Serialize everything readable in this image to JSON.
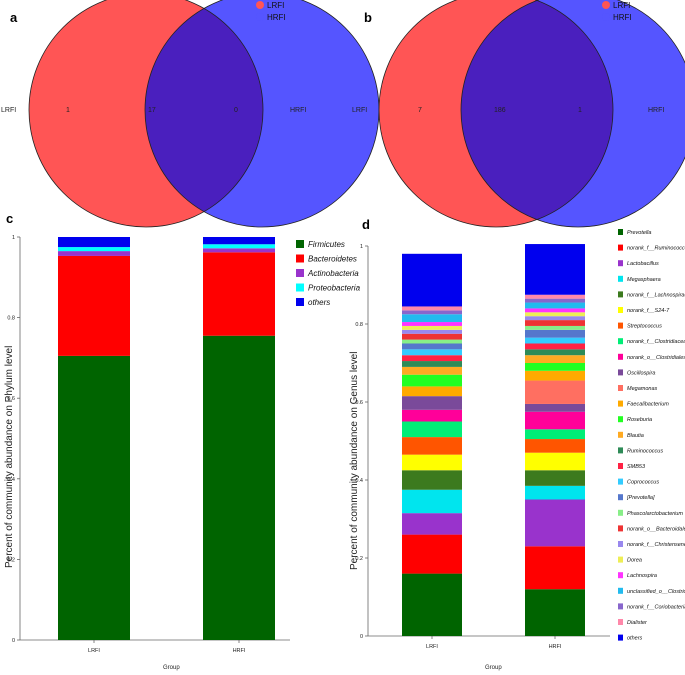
{
  "colors": {
    "lrfi": "#ff5555",
    "hrfi": "#5555ff",
    "overlap": "#4a1fbe"
  },
  "panels": {
    "a": "a",
    "b": "b",
    "c": "c",
    "d": "d"
  },
  "chart_data": [
    {
      "type": "venn",
      "panel": "a",
      "sets": [
        "LRFI",
        "HRFI"
      ],
      "legend": [
        "LRFI",
        "HRFI"
      ],
      "left_label": "LRFI",
      "right_label": "HRFI",
      "only_left": "1",
      "both": "17",
      "only_right": "0"
    },
    {
      "type": "venn",
      "panel": "b",
      "sets": [
        "LRFI",
        "HRFI"
      ],
      "legend": [
        "LRFI",
        "HRFI"
      ],
      "left_label": "LRFI",
      "right_label": "HRFI",
      "only_left": "7",
      "both": "186",
      "only_right": "1"
    },
    {
      "type": "bar",
      "stacked": true,
      "panel": "c",
      "categories": [
        "LRFI",
        "HRFI"
      ],
      "xlabel": "Group",
      "ylabel": "Percent of community abundance on Phylum level",
      "ylim": [
        0,
        1
      ],
      "yticks": [
        "0",
        "0.2",
        "0.4",
        "0.6",
        "0.8",
        "1"
      ],
      "series": [
        {
          "name": "Firmicutes",
          "color": "#006400",
          "values": [
            0.705,
            0.755
          ]
        },
        {
          "name": "Bacteroidetes",
          "color": "#ff0000",
          "values": [
            0.248,
            0.207
          ]
        },
        {
          "name": "Actinobacteria",
          "color": "#9933cc",
          "values": [
            0.012,
            0.01
          ]
        },
        {
          "name": "Proteobacteria",
          "color": "#00ffff",
          "values": [
            0.01,
            0.01
          ]
        },
        {
          "name": "others",
          "color": "#0000ee",
          "values": [
            0.025,
            0.018
          ]
        }
      ]
    },
    {
      "type": "bar",
      "stacked": true,
      "panel": "d",
      "categories": [
        "LRFI",
        "HRFI"
      ],
      "xlabel": "Group",
      "ylabel": "Percent of community abundance on Genus level",
      "ylim": [
        0,
        1
      ],
      "yticks": [
        "0",
        "0.2",
        "0.4",
        "0.6",
        "0.8",
        "1"
      ],
      "series": [
        {
          "name": "Prevotella",
          "color": "#006400",
          "values": [
            0.16,
            0.12
          ]
        },
        {
          "name": "norank_f__Ruminococcaceae",
          "color": "#ff0000",
          "values": [
            0.1,
            0.11
          ]
        },
        {
          "name": "Lactobacillus",
          "color": "#9933cc",
          "values": [
            0.055,
            0.12
          ]
        },
        {
          "name": "Megasphaera",
          "color": "#00e5ee",
          "values": [
            0.06,
            0.035
          ]
        },
        {
          "name": "norank_f__Lachnospiraceae",
          "color": "#3c7a1e",
          "values": [
            0.05,
            0.04
          ]
        },
        {
          "name": "norank_f__S24-7",
          "color": "#ffff00",
          "values": [
            0.04,
            0.045
          ]
        },
        {
          "name": "Streptococcus",
          "color": "#ff5500",
          "values": [
            0.045,
            0.035
          ]
        },
        {
          "name": "norank_f__Clostridiaceae",
          "color": "#00ee77",
          "values": [
            0.04,
            0.025
          ]
        },
        {
          "name": "norank_o__Clostridiales",
          "color": "#ff0099",
          "values": [
            0.03,
            0.045
          ]
        },
        {
          "name": "Oscillospira",
          "color": "#7a4a9a",
          "values": [
            0.035,
            0.02
          ]
        },
        {
          "name": "Megamonas",
          "color": "#ff6f61",
          "values": [
            0.0,
            0.06
          ]
        },
        {
          "name": "Faecalibacterium",
          "color": "#ffaa00",
          "values": [
            0.025,
            0.025
          ]
        },
        {
          "name": "Roseburia",
          "color": "#22ff22",
          "values": [
            0.03,
            0.02
          ]
        },
        {
          "name": "Blautia",
          "color": "#ffaa22",
          "values": [
            0.02,
            0.02
          ]
        },
        {
          "name": "Ruminococcus",
          "color": "#2e8b57",
          "values": [
            0.015,
            0.015
          ]
        },
        {
          "name": "SMB53",
          "color": "#ff2244",
          "values": [
            0.015,
            0.015
          ]
        },
        {
          "name": "Coprococcus",
          "color": "#33ccff",
          "values": [
            0.015,
            0.015
          ]
        },
        {
          "name": "[Prevotella]",
          "color": "#5577cc",
          "values": [
            0.015,
            0.02
          ]
        },
        {
          "name": "Phascolarctobacterium",
          "color": "#88ee88",
          "values": [
            0.01,
            0.01
          ]
        },
        {
          "name": "norank_o__Bacteroidales",
          "color": "#ee3333",
          "values": [
            0.015,
            0.015
          ]
        },
        {
          "name": "norank_f__Christensenellaceae",
          "color": "#9988ee",
          "values": [
            0.01,
            0.01
          ]
        },
        {
          "name": "Dorea",
          "color": "#eeee55",
          "values": [
            0.01,
            0.01
          ]
        },
        {
          "name": "Lachnospira",
          "color": "#ff33ff",
          "values": [
            0.01,
            0.01
          ]
        },
        {
          "name": "unclassified_o__Clostridiales",
          "color": "#22bbee",
          "values": [
            0.02,
            0.015
          ]
        },
        {
          "name": "norank_f__Coriobacteriaceae",
          "color": "#8866cc",
          "values": [
            0.01,
            0.01
          ]
        },
        {
          "name": "Dialister",
          "color": "#ff88aa",
          "values": [
            0.01,
            0.01
          ]
        },
        {
          "name": "others",
          "color": "#0000ee",
          "values": [
            0.135,
            0.13
          ]
        }
      ]
    }
  ]
}
